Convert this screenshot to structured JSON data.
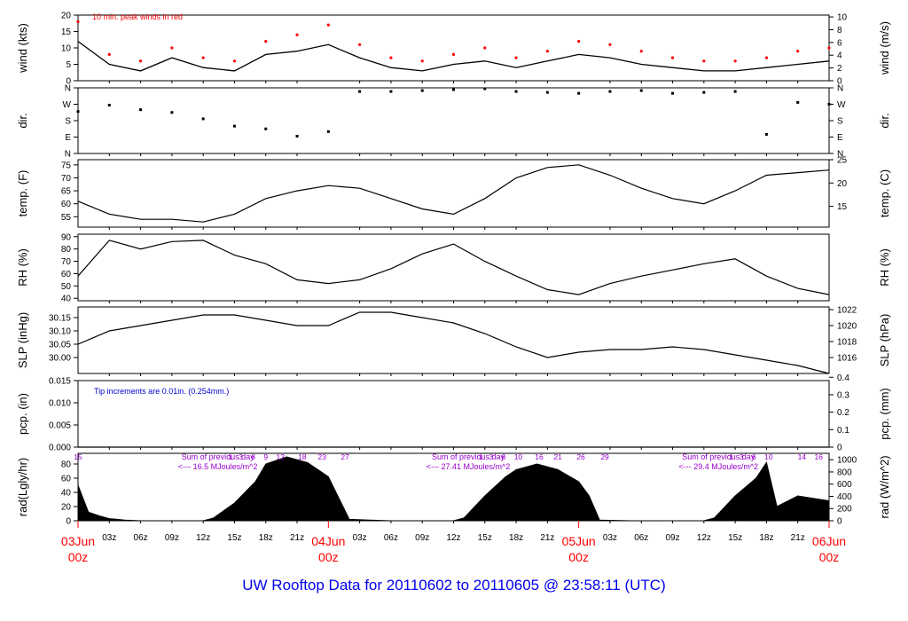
{
  "footer_title": "UW Rooftop Data for 20110602  to  20110605 @ 23:58:11  (UTC)",
  "colors": {
    "ink": "#000000",
    "peak": "#ff0000",
    "date": "#ff0000",
    "note": "#0000cc",
    "sum": "#9900cc",
    "footer": "#0000ee"
  },
  "chart_data": [
    {
      "id": "wind",
      "type": "line",
      "ylabel": "wind (kts)",
      "ylabel_right": "wind (m/s)",
      "ylim": [
        0,
        20
      ],
      "yticks": [
        0,
        5,
        10,
        15,
        20
      ],
      "right_ticks": [
        {
          "label": "0",
          "value": 0
        },
        {
          "label": "2",
          "value": 3.89
        },
        {
          "label": "4",
          "value": 7.78
        },
        {
          "label": "6",
          "value": 11.66
        },
        {
          "label": "8",
          "value": 15.55
        },
        {
          "label": "10",
          "value": 19.44
        }
      ],
      "annotation": "10 min. peak winds in red",
      "series": [
        {
          "role": "mean",
          "x": [
            0,
            3,
            6,
            9,
            12,
            15,
            18,
            21,
            24,
            27,
            30,
            33,
            36,
            39,
            42,
            45,
            48,
            51,
            54,
            57,
            60,
            63,
            66,
            69,
            72
          ],
          "y": [
            12,
            5,
            3,
            7,
            4,
            3,
            8,
            9,
            11,
            7,
            4,
            3,
            5,
            6,
            4,
            6,
            8,
            7,
            5,
            4,
            3,
            3,
            4,
            5,
            6
          ]
        },
        {
          "role": "peak",
          "x": [
            0,
            3,
            6,
            9,
            12,
            15,
            18,
            21,
            24,
            27,
            30,
            33,
            36,
            39,
            42,
            45,
            48,
            51,
            54,
            57,
            60,
            63,
            66,
            69,
            72
          ],
          "y": [
            18,
            8,
            6,
            10,
            7,
            6,
            12,
            14,
            17,
            11,
            7,
            6,
            8,
            10,
            7,
            9,
            12,
            11,
            9,
            7,
            6,
            6,
            7,
            9,
            10
          ]
        }
      ]
    },
    {
      "id": "dir",
      "type": "scatter",
      "ylabel": "dir.",
      "ylabel_right": "dir.",
      "ylim": [
        0,
        360
      ],
      "categories_y": [
        {
          "label": "N",
          "value": 0
        },
        {
          "label": "E",
          "value": 90
        },
        {
          "label": "S",
          "value": 180
        },
        {
          "label": "W",
          "value": 270
        },
        {
          "label": "N",
          "value": 360
        }
      ],
      "x": [
        0,
        3,
        6,
        9,
        12,
        15,
        18,
        21,
        24,
        27,
        30,
        33,
        36,
        39,
        42,
        45,
        48,
        51,
        54,
        57,
        60,
        63,
        66,
        69,
        72
      ],
      "y": [
        230,
        265,
        240,
        225,
        190,
        150,
        135,
        95,
        120,
        340,
        340,
        345,
        350,
        355,
        340,
        335,
        330,
        340,
        345,
        330,
        335,
        340,
        105,
        280,
        270
      ]
    },
    {
      "id": "temp",
      "type": "line",
      "ylabel": "temp. (F)",
      "ylabel_right": "temp. (C)",
      "ylim": [
        51,
        77
      ],
      "yticks": [
        55,
        60,
        65,
        70,
        75
      ],
      "right_ticks": [
        {
          "label": "15",
          "value": 59
        },
        {
          "label": "20",
          "value": 68
        },
        {
          "label": "25",
          "value": 77
        }
      ],
      "x": [
        0,
        3,
        6,
        9,
        12,
        15,
        18,
        21,
        24,
        27,
        30,
        33,
        36,
        39,
        42,
        45,
        48,
        51,
        54,
        57,
        60,
        63,
        66,
        69,
        72
      ],
      "y": [
        61,
        56,
        54,
        54,
        53,
        56,
        62,
        65,
        67,
        66,
        62,
        58,
        56,
        62,
        70,
        74,
        75,
        71,
        66,
        62,
        60,
        65,
        71,
        72,
        73
      ]
    },
    {
      "id": "rh",
      "type": "line",
      "ylabel": "RH (%)",
      "ylabel_right": "RH (%)",
      "ylim": [
        38,
        92
      ],
      "yticks": [
        40,
        50,
        60,
        70,
        80,
        90
      ],
      "x": [
        0,
        3,
        6,
        9,
        12,
        15,
        18,
        21,
        24,
        27,
        30,
        33,
        36,
        39,
        42,
        45,
        48,
        51,
        54,
        57,
        60,
        63,
        66,
        69,
        72
      ],
      "y": [
        58,
        87,
        80,
        86,
        87,
        75,
        68,
        55,
        52,
        55,
        64,
        76,
        84,
        70,
        58,
        47,
        43,
        52,
        58,
        63,
        68,
        72,
        58,
        48,
        43
      ]
    },
    {
      "id": "slp",
      "type": "line",
      "ylabel": "SLP (inHg)",
      "ylabel_right": "SLP (hPa)",
      "ylim": [
        29.94,
        30.19
      ],
      "yticks": [
        30.0,
        30.05,
        30.1,
        30.15
      ],
      "right_ticks": [
        {
          "label": "1016",
          "value": 30.0
        },
        {
          "label": "1018",
          "value": 30.06
        },
        {
          "label": "1020",
          "value": 30.12
        },
        {
          "label": "1022",
          "value": 30.18
        }
      ],
      "x": [
        0,
        3,
        6,
        9,
        12,
        15,
        18,
        21,
        24,
        27,
        30,
        33,
        36,
        39,
        42,
        45,
        48,
        51,
        54,
        57,
        60,
        63,
        66,
        69,
        72
      ],
      "y": [
        30.05,
        30.1,
        30.12,
        30.14,
        30.16,
        30.16,
        30.14,
        30.12,
        30.12,
        30.17,
        30.17,
        30.15,
        30.13,
        30.09,
        30.04,
        30.0,
        30.02,
        30.03,
        30.03,
        30.04,
        30.03,
        30.01,
        29.99,
        29.97,
        29.94
      ]
    },
    {
      "id": "pcp",
      "type": "line",
      "ylabel": "pcp. (in)",
      "ylabel_right": "pcp. (mm)",
      "ylim": [
        0,
        0.015
      ],
      "yticks": [
        0.0,
        0.005,
        0.01,
        0.015
      ],
      "right_ticks": [
        {
          "label": "0",
          "value": 0
        },
        {
          "label": "0.1",
          "value": 0.00394
        },
        {
          "label": "0.2",
          "value": 0.00787
        },
        {
          "label": "0.3",
          "value": 0.01181
        },
        {
          "label": "0.4",
          "value": 0.01575
        }
      ],
      "annotation": "Tip increments are 0.01in. (0.254mm.)",
      "x": [
        0,
        72
      ],
      "y": [
        0,
        0
      ]
    },
    {
      "id": "rad",
      "type": "area",
      "ylabel": "rad(Lgly/hr)",
      "ylabel_right": "rad (W/m^2)",
      "ylim": [
        0,
        95
      ],
      "yticks": [
        0,
        20,
        40,
        60,
        80
      ],
      "right_ticks": [
        {
          "label": "0",
          "value": 0
        },
        {
          "label": "200",
          "value": 17.2
        },
        {
          "label": "400",
          "value": 34.4
        },
        {
          "label": "600",
          "value": 51.6
        },
        {
          "label": "800",
          "value": 68.8
        },
        {
          "label": "1000",
          "value": 86.0
        }
      ],
      "x": [
        0,
        1,
        2,
        3,
        4.5,
        6,
        9,
        12,
        13,
        15,
        17,
        18,
        20,
        22,
        24,
        25,
        26,
        28,
        30,
        33,
        36,
        37,
        39,
        41,
        42,
        44,
        46,
        48,
        49,
        50,
        53,
        57,
        60,
        61,
        63,
        65,
        66,
        67,
        69,
        72
      ],
      "y": [
        50,
        12,
        7,
        3,
        1,
        0,
        0,
        0,
        4,
        25,
        55,
        80,
        90,
        82,
        62,
        32,
        2,
        1,
        0,
        0,
        0,
        4,
        35,
        62,
        72,
        80,
        72,
        55,
        35,
        1,
        0,
        0,
        0,
        4,
        35,
        60,
        82,
        20,
        35,
        28
      ],
      "daily_sums": [
        {
          "title": "Sum of previous day",
          "value": "<--- 16.5 MJoules/m^2",
          "x": 10
        },
        {
          "title": "Sum of previous day",
          "value": "<--- 27.41 MJoules/m^2",
          "x": 34
        },
        {
          "title": "Sum of previous day",
          "value": "<--- 29.4 MJoules/m^2",
          "x": 58
        }
      ],
      "top_labels": [
        {
          "label": "15",
          "x": 0
        },
        {
          "label": "1",
          "x": 14.6
        },
        {
          "label": "3",
          "x": 15.6
        },
        {
          "label": "6",
          "x": 16.8
        },
        {
          "label": "9",
          "x": 18.0
        },
        {
          "label": "12",
          "x": 19.4
        },
        {
          "label": "18",
          "x": 21.5
        },
        {
          "label": "23",
          "x": 23.4
        },
        {
          "label": "27",
          "x": 25.6
        },
        {
          "label": "1",
          "x": 38.6
        },
        {
          "label": "3",
          "x": 39.6
        },
        {
          "label": "6",
          "x": 40.8
        },
        {
          "label": "10",
          "x": 42.2
        },
        {
          "label": "16",
          "x": 44.2
        },
        {
          "label": "21",
          "x": 46.0
        },
        {
          "label": "26",
          "x": 48.2
        },
        {
          "label": "29",
          "x": 50.5
        },
        {
          "label": "1",
          "x": 62.6
        },
        {
          "label": "3",
          "x": 63.6
        },
        {
          "label": "6",
          "x": 64.8
        },
        {
          "label": "10",
          "x": 66.2
        },
        {
          "label": "14",
          "x": 69.4
        },
        {
          "label": "16",
          "x": 71.0
        }
      ]
    }
  ],
  "x_axis": {
    "range_hours": [
      0,
      72
    ],
    "hour_labels": [
      {
        "label": "03z",
        "hour": 3
      },
      {
        "label": "06z",
        "hour": 6
      },
      {
        "label": "09z",
        "hour": 9
      },
      {
        "label": "12z",
        "hour": 12
      },
      {
        "label": "15z",
        "hour": 15
      },
      {
        "label": "18z",
        "hour": 18
      },
      {
        "label": "21z",
        "hour": 21
      },
      {
        "label": "03z",
        "hour": 27
      },
      {
        "label": "06z",
        "hour": 30
      },
      {
        "label": "09z",
        "hour": 33
      },
      {
        "label": "12z",
        "hour": 36
      },
      {
        "label": "15z",
        "hour": 39
      },
      {
        "label": "18z",
        "hour": 42
      },
      {
        "label": "21z",
        "hour": 45
      },
      {
        "label": "03z",
        "hour": 51
      },
      {
        "label": "06z",
        "hour": 54
      },
      {
        "label": "09z",
        "hour": 57
      },
      {
        "label": "12z",
        "hour": 60
      },
      {
        "label": "15z",
        "hour": 63
      },
      {
        "label": "18z",
        "hour": 66
      },
      {
        "label": "21z",
        "hour": 69
      }
    ],
    "day_labels": [
      {
        "date": "03Jun",
        "time": "00z",
        "hour": 0
      },
      {
        "date": "04Jun",
        "time": "00z",
        "hour": 24
      },
      {
        "date": "05Jun",
        "time": "00z",
        "hour": 48
      },
      {
        "date": "06Jun",
        "time": "00z",
        "hour": 72
      }
    ]
  }
}
